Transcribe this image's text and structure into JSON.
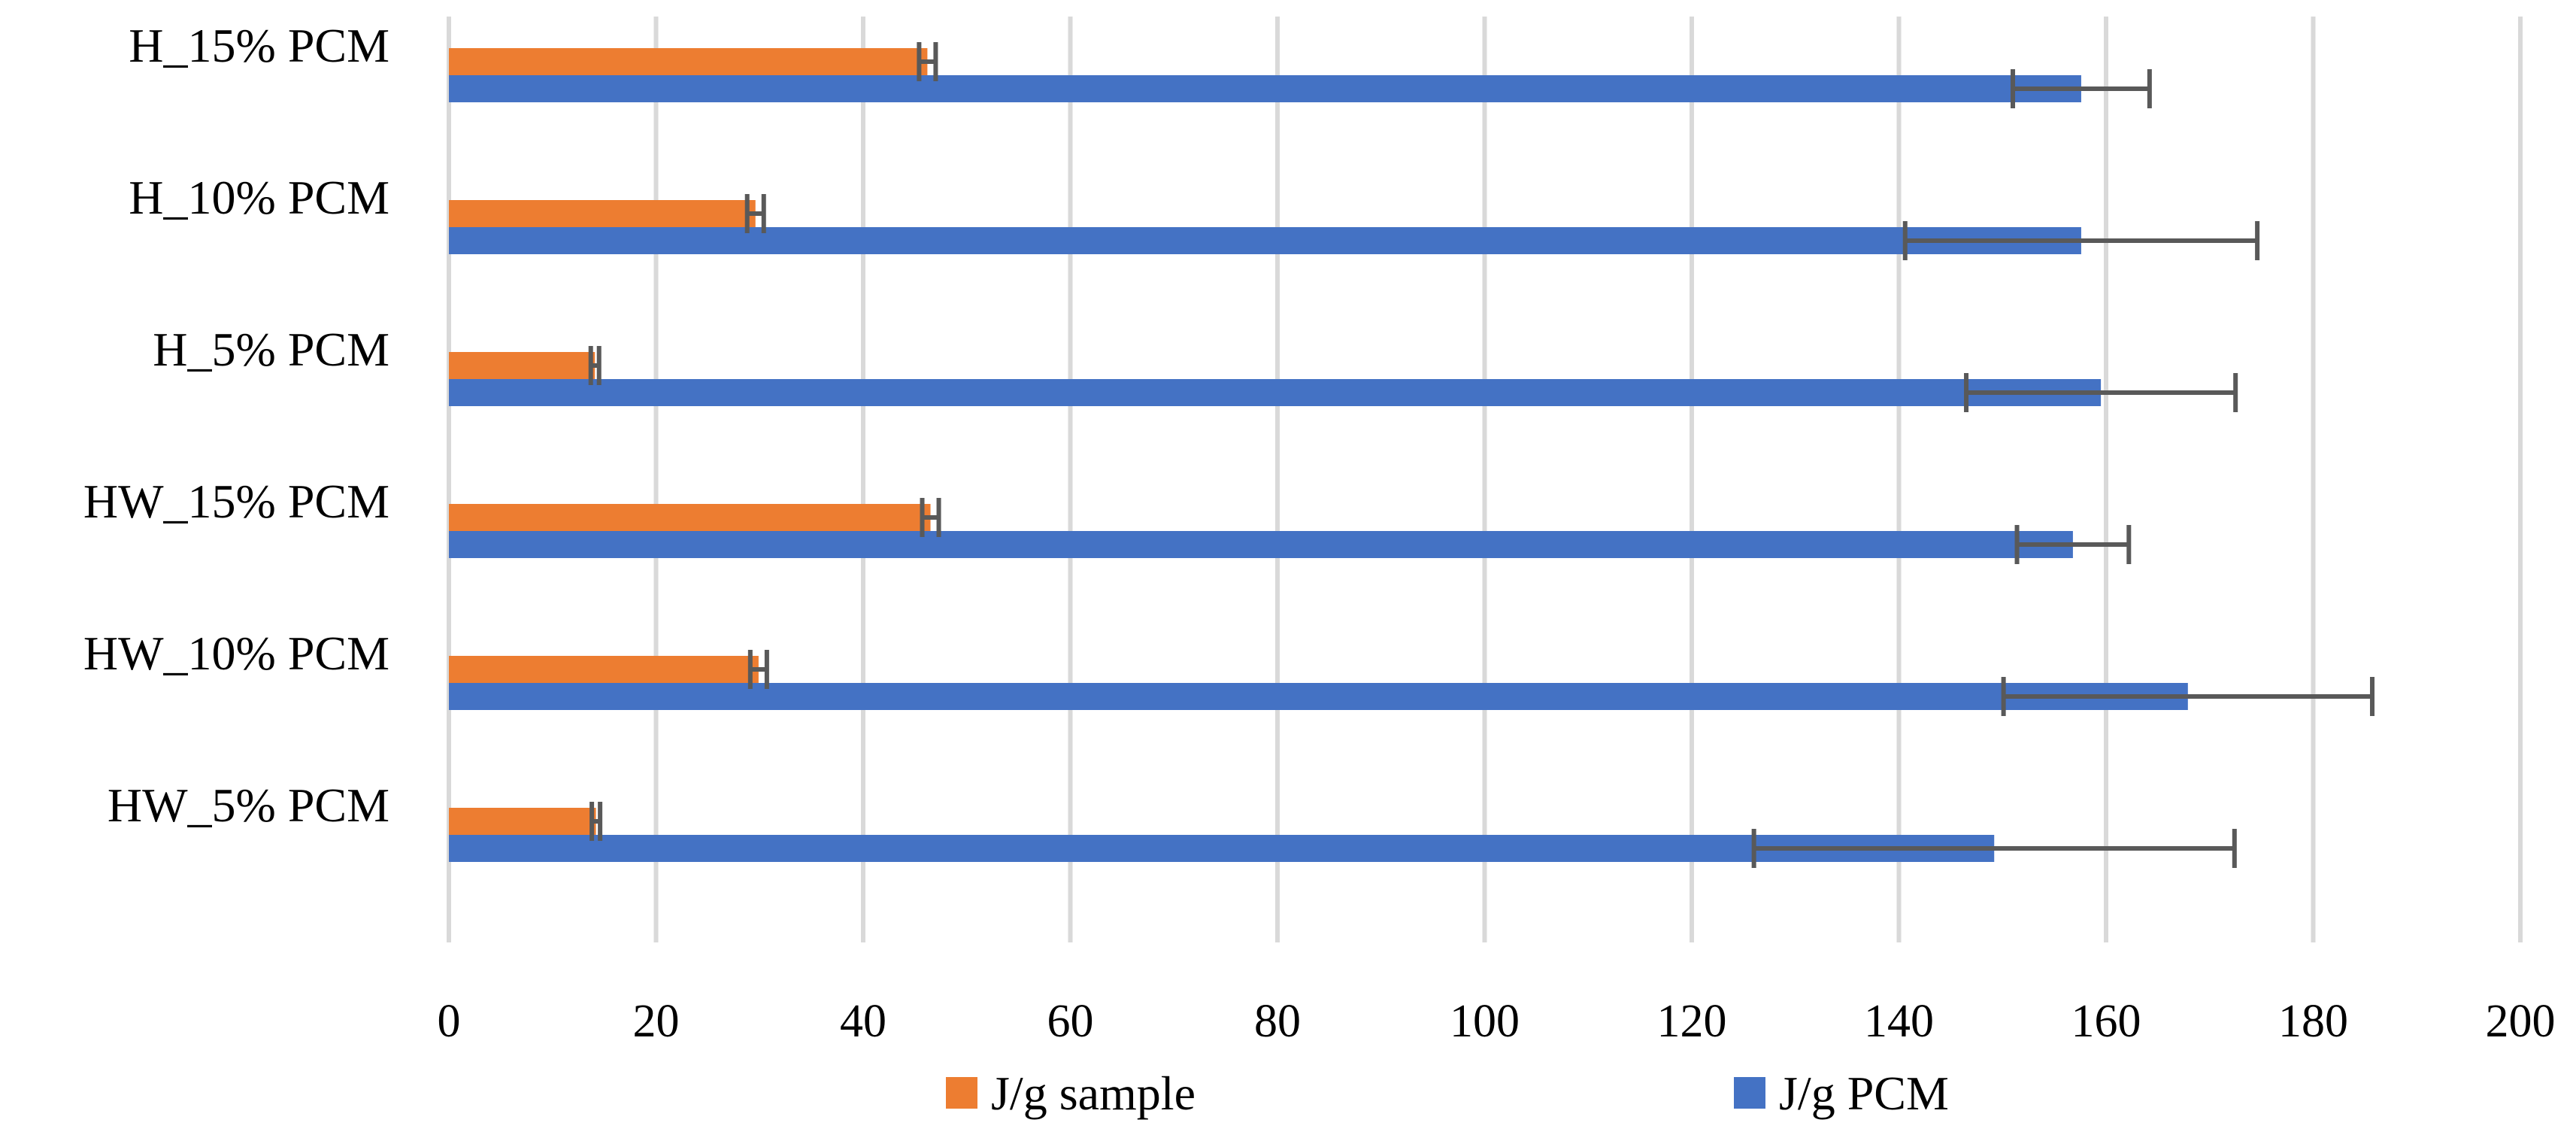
{
  "chart_data": {
    "type": "bar",
    "orientation": "horizontal",
    "title": "",
    "xlabel": "",
    "ylabel": "",
    "xlim": [
      0,
      200
    ],
    "x_ticks": [
      "0",
      "20",
      "40",
      "60",
      "80",
      "100",
      "120",
      "140",
      "160",
      "180",
      "200"
    ],
    "grid": true,
    "legend_position": "bottom",
    "categories": [
      "H_15% PCM",
      "H_10% PCM",
      "H_5% PCM",
      "HW_15% PCM",
      "HW_10% PCM",
      "HW_5% PCM"
    ],
    "series": [
      {
        "name": "J/g sample",
        "color": "#ED7D31",
        "values": [
          46.2,
          29.6,
          14.1,
          46.5,
          29.9,
          14.2
        ],
        "errors": [
          0.8,
          0.8,
          0.4,
          0.8,
          0.8,
          0.4
        ]
      },
      {
        "name": "J/g PCM",
        "color": "#4472C4",
        "values": [
          157.6,
          157.6,
          159.5,
          156.8,
          167.9,
          149.2
        ],
        "errors": [
          6.6,
          17.0,
          13.0,
          5.4,
          17.8,
          23.2
        ]
      }
    ]
  }
}
